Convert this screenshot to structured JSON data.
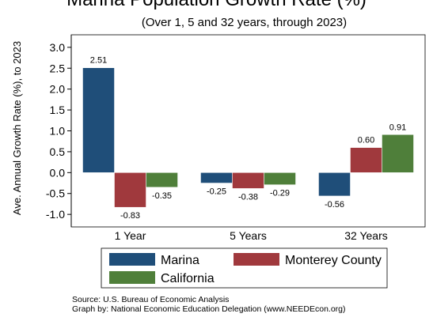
{
  "chart_data": {
    "type": "bar",
    "title": "Marina Population Growth Rate (%)",
    "subtitle": "(Over 1, 5 and 32 years, through 2023)",
    "ylabel": "Ave. Annual Growth Rate (%), to 2023",
    "xlabel": "",
    "categories": [
      "1 Year",
      "5 Years",
      "32 Years"
    ],
    "series": [
      {
        "name": "Marina",
        "color": "#1f4e79",
        "values": [
          2.51,
          -0.25,
          -0.56
        ],
        "labels": [
          "2.51",
          "-0.25",
          "-0.56"
        ]
      },
      {
        "name": "Monterey County",
        "color": "#a0393d",
        "values": [
          -0.83,
          -0.38,
          0.6
        ],
        "labels": [
          "-0.83",
          "-0.38",
          "0.60"
        ]
      },
      {
        "name": "California",
        "color": "#4f7f3a",
        "values": [
          -0.35,
          -0.29,
          0.91
        ],
        "labels": [
          "-0.35",
          "-0.29",
          "0.91"
        ]
      }
    ],
    "ylim": [
      -1.3,
      3.3
    ],
    "yticks": [
      3.0,
      2.5,
      2.0,
      1.5,
      1.0,
      0.5,
      0.0,
      -0.5,
      -1.0
    ],
    "ytick_labels": [
      "3.0",
      "2.5",
      "2.0",
      "1.5",
      "1.0",
      "0.5",
      "0.0",
      "-0.5",
      "-1.0"
    ],
    "grid": false,
    "legend": "bottom"
  },
  "source": {
    "line1": "Source: U.S. Bureau of Economic Analysis",
    "line2": "Graph by: National Economic Education Delegation (www.NEEDEcon.org)"
  }
}
